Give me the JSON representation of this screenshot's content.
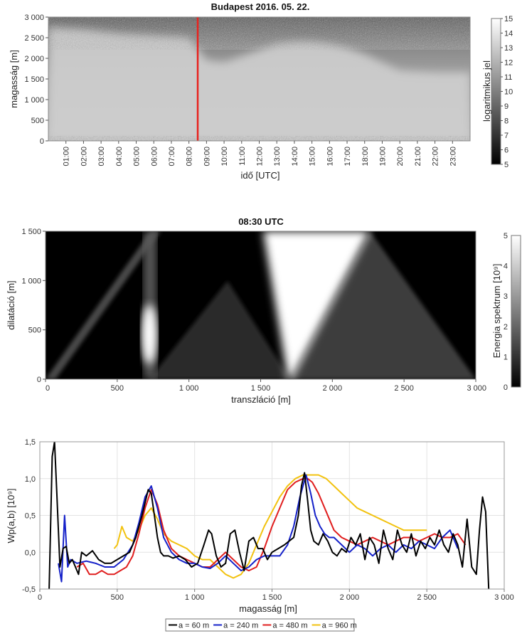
{
  "colors": {
    "marker": "#e8231f",
    "series_60": "#000000",
    "series_240": "#1521c9",
    "series_480": "#e01e1e",
    "series_960": "#f2c20f",
    "gridline": "#e3e3e3"
  },
  "chart_data": [
    {
      "type": "heatmap",
      "title": "Budapest 2016. 05. 22.",
      "xlabel": "idő [UTC]",
      "ylabel": "magasság [m]",
      "x_tick_labels": [
        "01:00",
        "02:00",
        "03:00",
        "04:00",
        "05:00",
        "06:00",
        "07:00",
        "08:00",
        "09:00",
        "10:00",
        "11:00",
        "12:00",
        "13:00",
        "14:00",
        "15:00",
        "16:00",
        "17:00",
        "18:00",
        "19:00",
        "20:00",
        "21:00",
        "22:00",
        "23:00"
      ],
      "y_ticks": [
        0,
        500,
        1000,
        1500,
        2000,
        2500,
        3000
      ],
      "y_tick_labels": [
        "0",
        "500",
        "1 000",
        "1 500",
        "2 000",
        "2 500",
        "3 000"
      ],
      "ylim": [
        0,
        3000
      ],
      "xlim_hours": [
        0,
        24
      ],
      "marker_time_hours": 8.5,
      "colorbar": {
        "label": "logaritmikus jel",
        "min": 5,
        "max": 15,
        "tick_labels": [
          "5",
          "6",
          "7",
          "8",
          "9",
          "10",
          "11",
          "12",
          "13",
          "14",
          "15"
        ],
        "gradient": "black-to-white"
      },
      "boundary_layer_profile_hours": [
        0,
        2,
        4,
        6,
        8,
        9,
        10,
        11,
        12,
        13,
        14,
        15,
        16,
        17,
        18,
        19,
        20,
        22,
        24
      ],
      "boundary_layer_profile_m": [
        2750,
        2700,
        2600,
        2550,
        2500,
        1950,
        1900,
        2050,
        2200,
        2350,
        2400,
        2400,
        2350,
        2250,
        2100,
        1900,
        1700,
        1650,
        1650
      ]
    },
    {
      "type": "heatmap",
      "title": "08:30 UTC",
      "xlabel": "transzláció [m]",
      "ylabel": "dilatáció [m]",
      "x_ticks": [
        0,
        500,
        1000,
        1500,
        2000,
        2500,
        3000
      ],
      "x_tick_labels": [
        "0",
        "500",
        "1 000",
        "1 500",
        "2 000",
        "2 500",
        "3 000"
      ],
      "y_ticks": [
        0,
        500,
        1000,
        1500
      ],
      "y_tick_labels": [
        "0",
        "500",
        "1 000",
        "1 500"
      ],
      "xlim": [
        0,
        3000
      ],
      "ylim": [
        0,
        1500
      ],
      "colorbar": {
        "label": "Energia spektrum [10⁹]",
        "min": 0,
        "max": 5,
        "tick_labels": [
          "0",
          "1",
          "2",
          "3",
          "4",
          "5"
        ],
        "gradient": "black-to-white"
      },
      "energy_peaks_translation_m": [
        720,
        1700
      ],
      "energy_peak_values": [
        5,
        5
      ]
    },
    {
      "type": "line",
      "title": "",
      "xlabel": "magasság [m]",
      "ylabel": "Wp(a,b) [10⁹]",
      "x_ticks": [
        0,
        500,
        1000,
        1500,
        2000,
        2500,
        3000
      ],
      "x_tick_labels": [
        "0",
        "500",
        "1 000",
        "1 500",
        "2 000",
        "2 500",
        "3 000"
      ],
      "y_ticks": [
        -0.5,
        0,
        0.5,
        1,
        1.5
      ],
      "y_tick_labels": [
        "-0,5",
        "0,0",
        "0,5",
        "1,0",
        "1,5"
      ],
      "xlim": [
        0,
        3000
      ],
      "ylim": [
        -0.5,
        1.5
      ],
      "grid": true,
      "legend_position": "bottom",
      "series": [
        {
          "name": "a = 60 m",
          "color_key": "series_60",
          "x": [
            60,
            80,
            95,
            110,
            130,
            150,
            170,
            190,
            210,
            230,
            250,
            270,
            300,
            340,
            380,
            420,
            460,
            500,
            540,
            580,
            620,
            660,
            700,
            720,
            740,
            760,
            780,
            800,
            830,
            860,
            900,
            940,
            980,
            1020,
            1060,
            1090,
            1110,
            1140,
            1170,
            1200,
            1230,
            1260,
            1290,
            1320,
            1350,
            1380,
            1410,
            1440,
            1470,
            1500,
            1540,
            1580,
            1610,
            1640,
            1670,
            1690,
            1710,
            1730,
            1750,
            1770,
            1800,
            1830,
            1860,
            1890,
            1920,
            1950,
            1980,
            2010,
            2040,
            2070,
            2100,
            2130,
            2160,
            2190,
            2220,
            2250,
            2280,
            2310,
            2340,
            2370,
            2400,
            2430,
            2460,
            2490,
            2520,
            2550,
            2580,
            2610,
            2640,
            2670,
            2700,
            2730,
            2760,
            2790,
            2820,
            2840,
            2860,
            2880,
            2900
          ],
          "y": [
            -0.5,
            1.3,
            1.5,
            0.8,
            -0.2,
            0.05,
            0.08,
            -0.15,
            -0.1,
            -0.2,
            -0.3,
            0.0,
            -0.05,
            0.02,
            -0.1,
            -0.15,
            -0.15,
            -0.1,
            -0.05,
            0.0,
            0.2,
            0.5,
            0.85,
            0.8,
            0.5,
            0.2,
            0.0,
            -0.05,
            -0.05,
            -0.08,
            -0.05,
            -0.1,
            -0.2,
            -0.15,
            0.1,
            0.3,
            0.25,
            -0.05,
            -0.2,
            -0.15,
            0.25,
            0.3,
            0.0,
            -0.25,
            0.15,
            0.2,
            0.05,
            0.05,
            -0.1,
            0.0,
            0.05,
            0.1,
            0.15,
            0.2,
            0.5,
            0.9,
            1.08,
            0.7,
            0.3,
            0.15,
            0.1,
            0.25,
            0.15,
            0.0,
            -0.05,
            0.05,
            0.0,
            0.2,
            0.1,
            0.25,
            -0.1,
            0.2,
            0.1,
            -0.15,
            0.3,
            0.05,
            -0.1,
            0.3,
            0.1,
            0.0,
            0.25,
            -0.05,
            0.15,
            0.05,
            0.2,
            0.1,
            0.3,
            0.1,
            0.0,
            0.25,
            0.1,
            -0.2,
            0.45,
            -0.2,
            -0.3,
            0.3,
            0.75,
            0.55,
            -0.5
          ]
        },
        {
          "name": "a = 240 m",
          "color_key": "series_240",
          "x": [
            120,
            140,
            160,
            180,
            200,
            240,
            300,
            360,
            420,
            480,
            540,
            600,
            640,
            680,
            720,
            760,
            800,
            850,
            900,
            950,
            1000,
            1050,
            1100,
            1150,
            1200,
            1250,
            1300,
            1350,
            1400,
            1450,
            1500,
            1550,
            1600,
            1640,
            1680,
            1720,
            1750,
            1780,
            1810,
            1840,
            1870,
            1900,
            1950,
            2000,
            2050,
            2100,
            2150,
            2200,
            2250,
            2300,
            2350,
            2400,
            2450,
            2500,
            2550,
            2600,
            2650,
            2700
          ],
          "y": [
            -0.15,
            -0.4,
            0.5,
            -0.2,
            -0.1,
            -0.15,
            -0.12,
            -0.15,
            -0.2,
            -0.2,
            -0.1,
            0.1,
            0.4,
            0.75,
            0.9,
            0.6,
            0.2,
            0.0,
            -0.1,
            -0.15,
            -0.15,
            -0.2,
            -0.22,
            -0.15,
            -0.05,
            -0.15,
            -0.25,
            -0.2,
            -0.1,
            -0.05,
            -0.05,
            -0.05,
            0.1,
            0.35,
            0.75,
            1.05,
            0.8,
            0.5,
            0.35,
            0.25,
            0.2,
            0.2,
            0.1,
            0.0,
            0.1,
            0.05,
            -0.05,
            0.05,
            0.1,
            0.0,
            0.1,
            0.05,
            0.15,
            0.1,
            0.05,
            0.2,
            0.3,
            0.05
          ]
        },
        {
          "name": "a = 480 m",
          "color_key": "series_480",
          "x": [
            240,
            280,
            320,
            360,
            400,
            440,
            480,
            520,
            560,
            600,
            640,
            680,
            720,
            760,
            800,
            850,
            900,
            950,
            1000,
            1050,
            1100,
            1150,
            1200,
            1250,
            1300,
            1350,
            1400,
            1450,
            1500,
            1550,
            1600,
            1650,
            1700,
            1730,
            1760,
            1800,
            1850,
            1900,
            1950,
            2000,
            2050,
            2100,
            2150,
            2200,
            2250,
            2300,
            2350,
            2400,
            2450,
            2500,
            2550,
            2600,
            2650,
            2700,
            2750
          ],
          "y": [
            -0.2,
            -0.15,
            -0.3,
            -0.3,
            -0.25,
            -0.3,
            -0.3,
            -0.25,
            -0.2,
            -0.05,
            0.25,
            0.6,
            0.85,
            0.65,
            0.3,
            0.05,
            -0.05,
            -0.1,
            -0.15,
            -0.2,
            -0.2,
            -0.1,
            0.0,
            -0.1,
            -0.2,
            -0.25,
            -0.2,
            0.05,
            0.35,
            0.6,
            0.85,
            0.95,
            1.0,
            1.0,
            0.95,
            0.8,
            0.55,
            0.3,
            0.2,
            0.15,
            0.1,
            0.15,
            0.2,
            0.15,
            0.1,
            0.15,
            0.2,
            0.2,
            0.15,
            0.2,
            0.25,
            0.2,
            0.2,
            0.25,
            0.1
          ]
        },
        {
          "name": "a = 960 m",
          "color_key": "series_960",
          "x": [
            480,
            500,
            530,
            560,
            600,
            640,
            680,
            720,
            760,
            800,
            850,
            900,
            950,
            1000,
            1050,
            1100,
            1150,
            1200,
            1250,
            1300,
            1350,
            1400,
            1450,
            1500,
            1550,
            1600,
            1650,
            1700,
            1750,
            1800,
            1850,
            1900,
            1950,
            2000,
            2050,
            2100,
            2150,
            2200,
            2250,
            2300,
            2350,
            2400,
            2450,
            2500
          ],
          "y": [
            0.05,
            0.1,
            0.35,
            0.2,
            0.15,
            0.3,
            0.5,
            0.6,
            0.45,
            0.25,
            0.15,
            0.1,
            0.05,
            -0.05,
            -0.1,
            -0.1,
            -0.2,
            -0.3,
            -0.35,
            -0.3,
            -0.15,
            0.1,
            0.35,
            0.55,
            0.75,
            0.9,
            1.0,
            1.05,
            1.05,
            1.05,
            1.0,
            0.9,
            0.8,
            0.7,
            0.6,
            0.55,
            0.5,
            0.45,
            0.4,
            0.35,
            0.3,
            0.3,
            0.3,
            0.3
          ]
        }
      ]
    }
  ]
}
